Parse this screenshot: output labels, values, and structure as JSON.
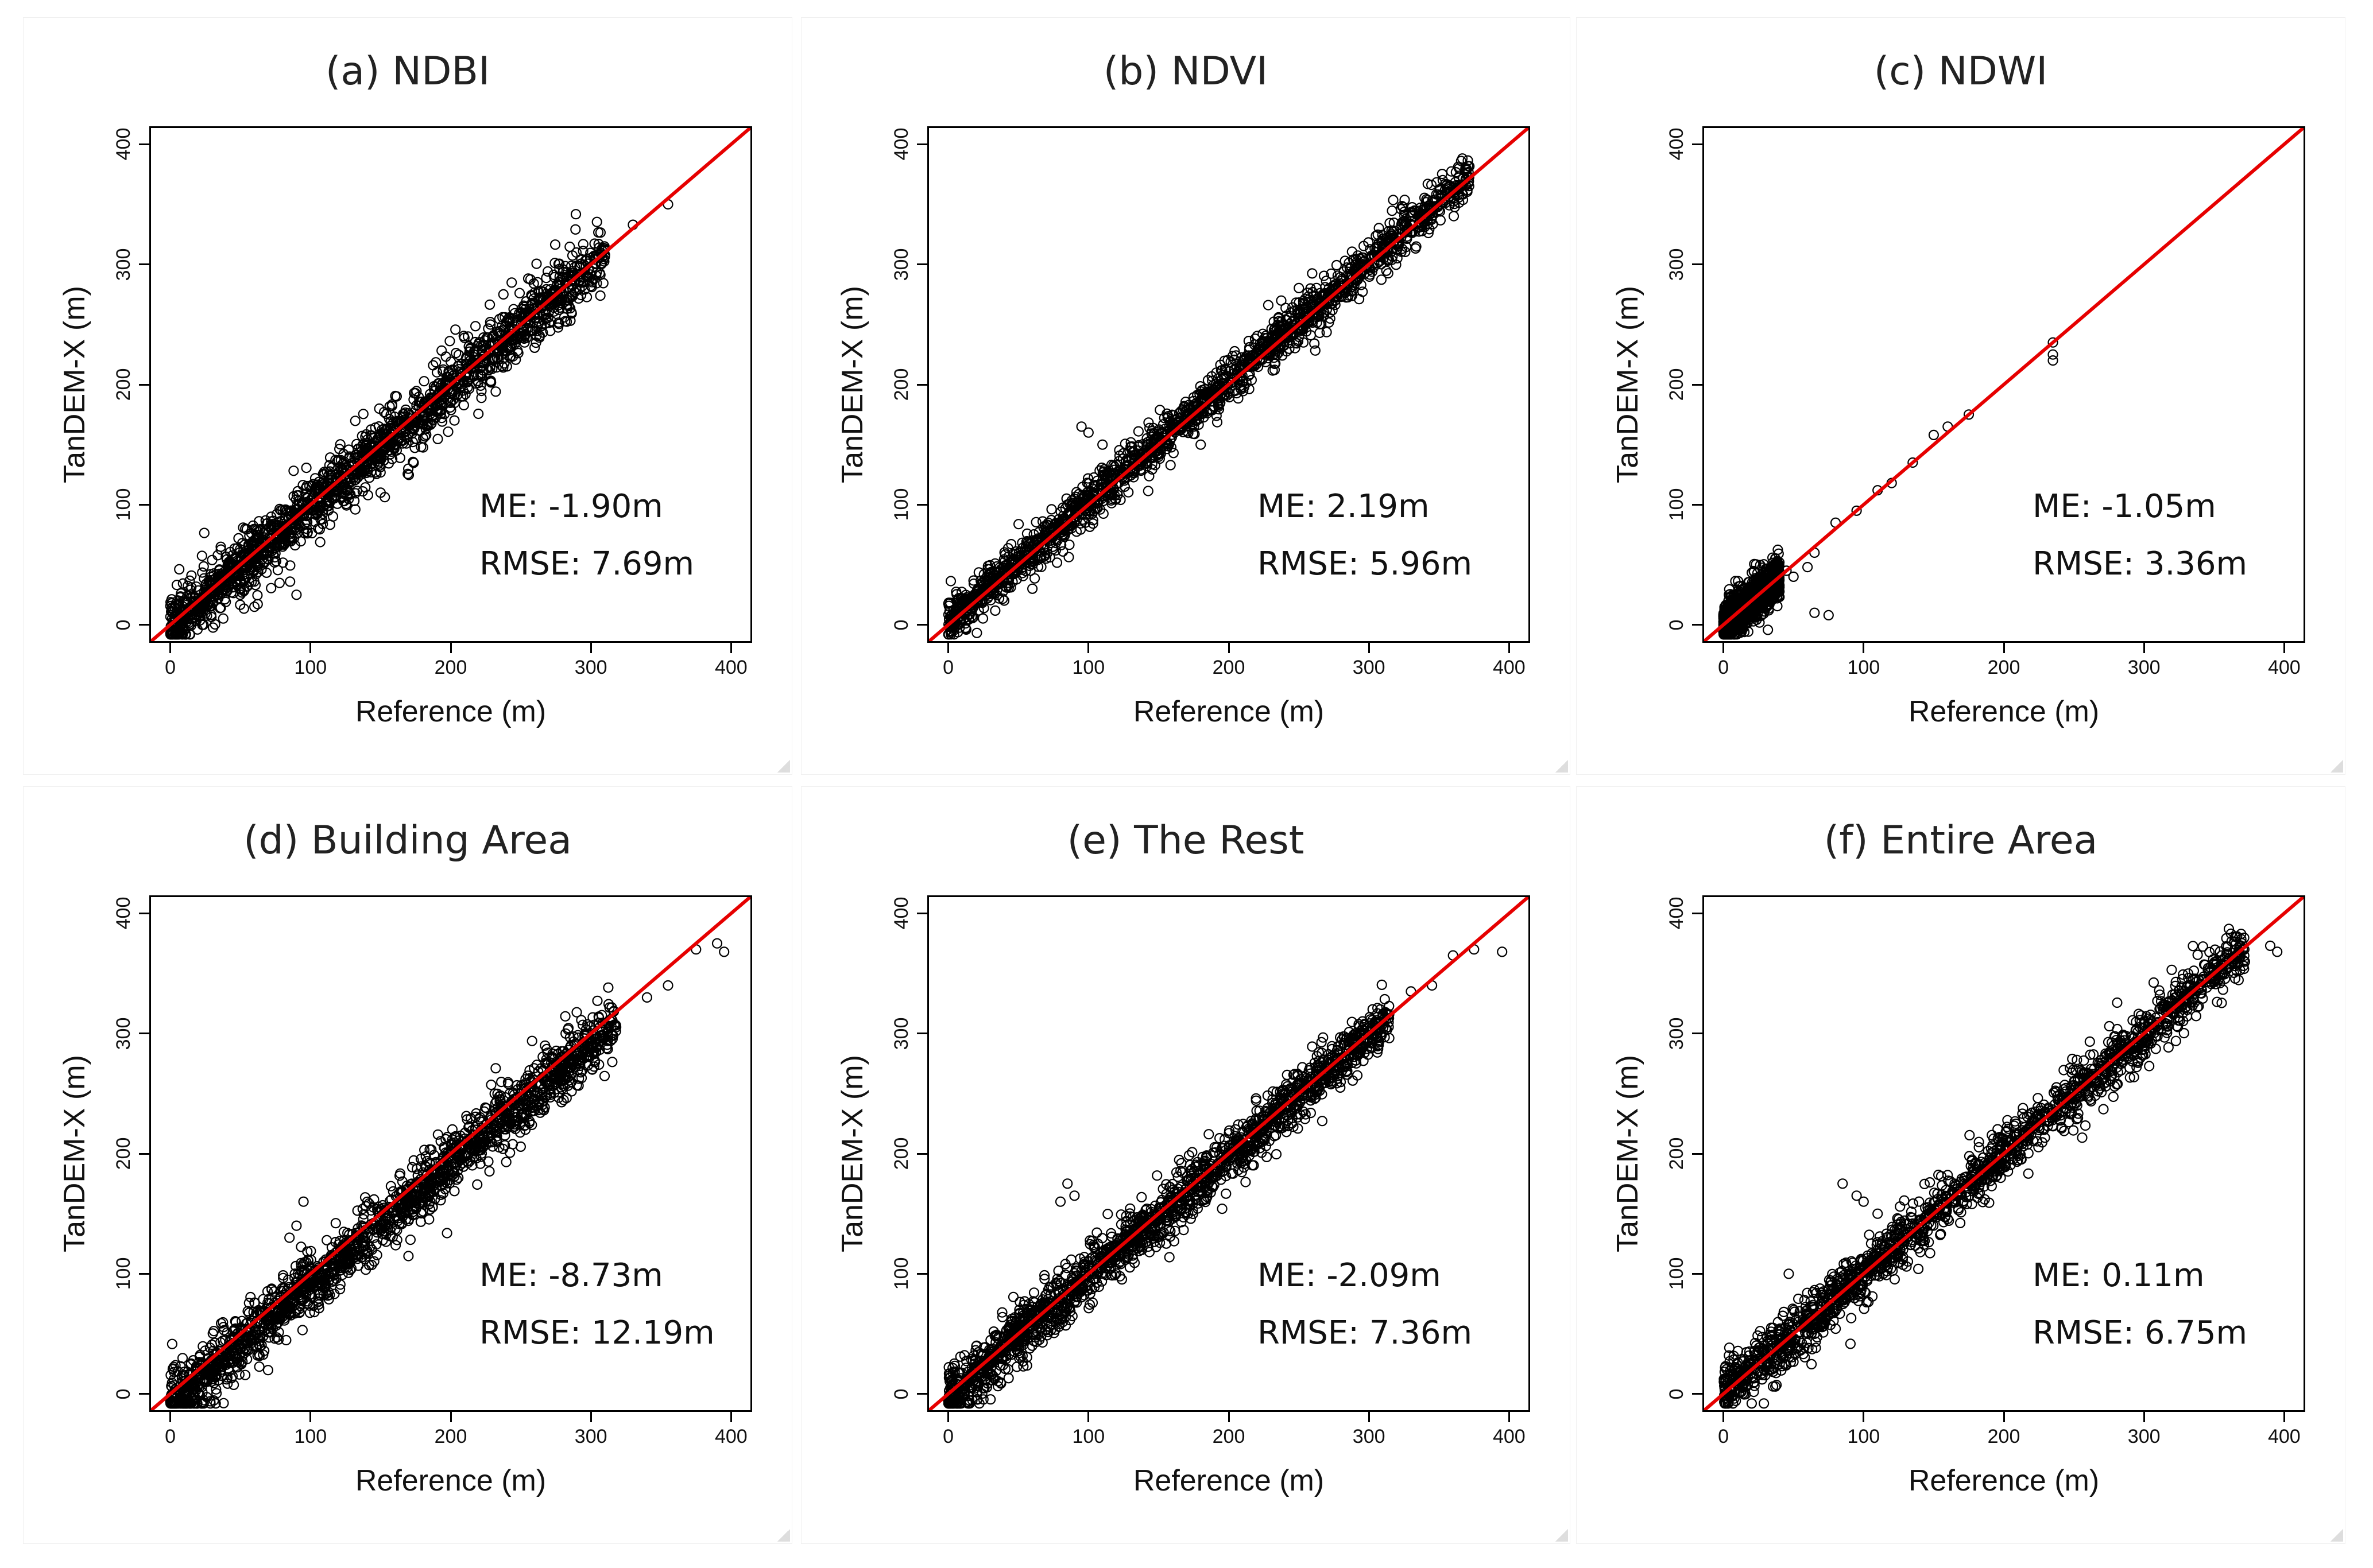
{
  "panels": [
    {
      "title": "(a) NDBI",
      "me": "ME: -1.90m",
      "rmse": "RMSE: 7.69m",
      "xlabel": "Reference (m)",
      "ylabel": "TanDEM-X (m)",
      "xticks": [
        "0",
        "100",
        "200",
        "300",
        "400"
      ],
      "yticks": [
        "0",
        "100",
        "200",
        "300",
        "400"
      ]
    },
    {
      "title": "(b) NDVI",
      "me": "ME: 2.19m",
      "rmse": "RMSE: 5.96m",
      "xlabel": "Reference (m)",
      "ylabel": "TanDEM-X (m)",
      "xticks": [
        "0",
        "100",
        "200",
        "300",
        "400"
      ],
      "yticks": [
        "0",
        "100",
        "200",
        "300",
        "400"
      ]
    },
    {
      "title": "(c) NDWI",
      "me": "ME: -1.05m",
      "rmse": "RMSE: 3.36m",
      "xlabel": "Reference (m)",
      "ylabel": "TanDEM-X (m)",
      "xticks": [
        "0",
        "100",
        "200",
        "300",
        "400"
      ],
      "yticks": [
        "0",
        "100",
        "200",
        "300",
        "400"
      ]
    },
    {
      "title": "(d) Building Area",
      "me": "ME: -8.73m",
      "rmse": "RMSE: 12.19m",
      "xlabel": "Reference (m)",
      "ylabel": "TanDEM-X (m)",
      "xticks": [
        "0",
        "100",
        "200",
        "300",
        "400"
      ],
      "yticks": [
        "0",
        "100",
        "200",
        "300",
        "400"
      ]
    },
    {
      "title": "(e) The Rest",
      "me": "ME: -2.09m",
      "rmse": "RMSE: 7.36m",
      "xlabel": "Reference (m)",
      "ylabel": "TanDEM-X (m)",
      "xticks": [
        "0",
        "100",
        "200",
        "300",
        "400"
      ],
      "yticks": [
        "0",
        "100",
        "200",
        "300",
        "400"
      ]
    },
    {
      "title": "(f) Entire Area",
      "me": "ME: 0.11m",
      "rmse": "RMSE: 6.75m",
      "xlabel": "Reference (m)",
      "ylabel": "TanDEM-X (m)",
      "xticks": [
        "0",
        "100",
        "200",
        "300",
        "400"
      ],
      "yticks": [
        "0",
        "100",
        "200",
        "300",
        "400"
      ]
    }
  ],
  "chart_data": [
    {
      "type": "scatter",
      "title": "(a) NDBI",
      "xlabel": "Reference (m)",
      "ylabel": "TanDEM-X (m)",
      "xlim": [
        -15,
        415
      ],
      "ylim": [
        -15,
        415
      ],
      "annotations": [
        "ME: -1.90m",
        "RMSE: 7.69m"
      ],
      "reference_line": {
        "slope": 1,
        "intercept": 0,
        "color": "#e60000"
      },
      "point_color": "#000000",
      "series": [
        {
          "x_range": [
            0,
            310
          ],
          "y_range": [
            0,
            302
          ],
          "spread": 14,
          "mean_error": -1.9
        }
      ],
      "outliers": [
        [
          355,
          350
        ],
        [
          330,
          333
        ],
        [
          60,
          15
        ],
        [
          90,
          25
        ],
        [
          150,
          110
        ]
      ]
    },
    {
      "type": "scatter",
      "title": "(b) NDVI",
      "xlabel": "Reference (m)",
      "ylabel": "TanDEM-X (m)",
      "xlim": [
        -15,
        415
      ],
      "ylim": [
        -15,
        415
      ],
      "annotations": [
        "ME: 2.19m",
        "RMSE: 5.96m"
      ],
      "reference_line": {
        "slope": 1,
        "intercept": 0,
        "color": "#e60000"
      },
      "point_color": "#000000",
      "series": [
        {
          "x_range": [
            0,
            372
          ],
          "y_range": [
            0,
            375
          ],
          "spread": 10,
          "mean_error": 2.19
        }
      ],
      "outliers": [
        [
          95,
          165
        ],
        [
          100,
          160
        ],
        [
          110,
          150
        ],
        [
          180,
          150
        ],
        [
          60,
          30
        ]
      ]
    },
    {
      "type": "scatter",
      "title": "(c) NDWI",
      "xlabel": "Reference (m)",
      "ylabel": "TanDEM-X (m)",
      "xlim": [
        -15,
        415
      ],
      "ylim": [
        -15,
        415
      ],
      "annotations": [
        "ME: -1.05m",
        "RMSE: 3.36m"
      ],
      "reference_line": {
        "slope": 1,
        "intercept": 0,
        "color": "#e60000"
      },
      "point_color": "#000000",
      "series": [
        {
          "x_range": [
            0,
            40
          ],
          "y_range": [
            0,
            35
          ],
          "spread": 8,
          "mean_error": -1.05
        }
      ],
      "outliers": [
        [
          60,
          48
        ],
        [
          65,
          60
        ],
        [
          80,
          85
        ],
        [
          95,
          95
        ],
        [
          110,
          112
        ],
        [
          120,
          118
        ],
        [
          135,
          135
        ],
        [
          150,
          158
        ],
        [
          160,
          165
        ],
        [
          175,
          175
        ],
        [
          235,
          235
        ],
        [
          235,
          225
        ],
        [
          235,
          220
        ],
        [
          65,
          10
        ],
        [
          75,
          8
        ],
        [
          50,
          40
        ],
        [
          45,
          45
        ]
      ]
    },
    {
      "type": "scatter",
      "title": "(d) Building Area",
      "xlabel": "Reference (m)",
      "ylabel": "TanDEM-X (m)",
      "xlim": [
        -15,
        415
      ],
      "ylim": [
        -15,
        415
      ],
      "annotations": [
        "ME: -8.73m",
        "RMSE: 12.19m"
      ],
      "reference_line": {
        "slope": 1,
        "intercept": 0,
        "color": "#e60000"
      },
      "point_color": "#000000",
      "series": [
        {
          "x_range": [
            0,
            318
          ],
          "y_range": [
            0,
            305
          ],
          "spread": 14,
          "mean_error": -8.73
        }
      ],
      "outliers": [
        [
          340,
          330
        ],
        [
          355,
          340
        ],
        [
          375,
          370
        ],
        [
          395,
          368
        ],
        [
          390,
          375
        ],
        [
          95,
          160
        ],
        [
          90,
          140
        ],
        [
          85,
          130
        ]
      ]
    },
    {
      "type": "scatter",
      "title": "(e) The Rest",
      "xlabel": "Reference (m)",
      "ylabel": "TanDEM-X (m)",
      "xlim": [
        -15,
        415
      ],
      "ylim": [
        -15,
        415
      ],
      "annotations": [
        "ME: -2.09m",
        "RMSE: 7.36m"
      ],
      "reference_line": {
        "slope": 1,
        "intercept": 0,
        "color": "#e60000"
      },
      "point_color": "#000000",
      "series": [
        {
          "x_range": [
            0,
            315
          ],
          "y_range": [
            0,
            310
          ],
          "spread": 12,
          "mean_error": -2.09
        }
      ],
      "outliers": [
        [
          85,
          175
        ],
        [
          90,
          165
        ],
        [
          80,
          160
        ],
        [
          360,
          365
        ],
        [
          375,
          370
        ],
        [
          395,
          368
        ],
        [
          330,
          335
        ],
        [
          345,
          340
        ]
      ]
    },
    {
      "type": "scatter",
      "title": "(f) Entire Area",
      "xlabel": "Reference (m)",
      "ylabel": "TanDEM-X (m)",
      "xlim": [
        -15,
        415
      ],
      "ylim": [
        -15,
        415
      ],
      "annotations": [
        "ME: 0.11m",
        "RMSE: 6.75m"
      ],
      "reference_line": {
        "slope": 1,
        "intercept": 0,
        "color": "#e60000"
      },
      "point_color": "#000000",
      "series": [
        {
          "x_range": [
            0,
            372
          ],
          "y_range": [
            0,
            375
          ],
          "spread": 12,
          "mean_error": 0.11
        }
      ],
      "outliers": [
        [
          85,
          175
        ],
        [
          95,
          165
        ],
        [
          100,
          160
        ],
        [
          395,
          368
        ],
        [
          390,
          373
        ],
        [
          110,
          150
        ]
      ]
    }
  ]
}
